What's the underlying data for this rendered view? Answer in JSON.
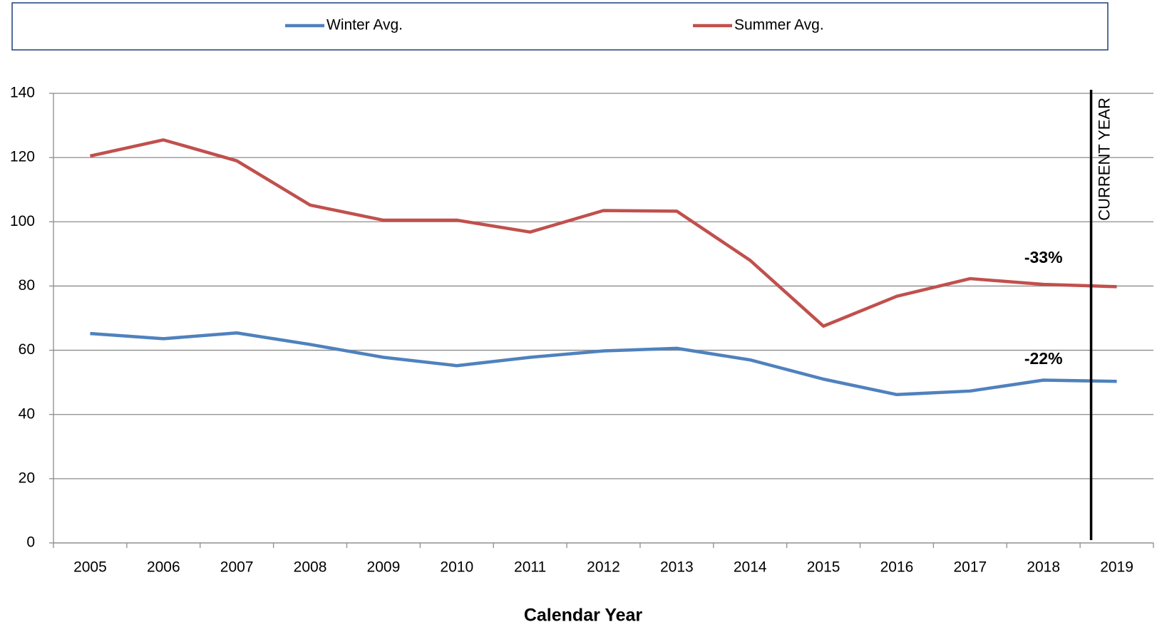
{
  "chart_data": {
    "type": "line",
    "x_label": "Calendar Year",
    "categories": [
      "2005",
      "2006",
      "2007",
      "2008",
      "2009",
      "2010",
      "2011",
      "2012",
      "2013",
      "2014",
      "2015",
      "2016",
      "2017",
      "2018",
      "2019"
    ],
    "series": [
      {
        "name": "Winter Avg.",
        "color": "#4f81bd",
        "values": [
          65.2,
          63.6,
          65.4,
          61.8,
          57.8,
          55.2,
          57.8,
          59.8,
          60.6,
          57.0,
          51.0,
          46.2,
          47.3,
          50.7,
          50.3
        ]
      },
      {
        "name": "Summer Avg.",
        "color": "#c0504d",
        "values": [
          120.5,
          125.5,
          119.0,
          105.2,
          100.5,
          100.5,
          96.8,
          103.5,
          103.3,
          88.0,
          67.5,
          76.8,
          82.3,
          80.5,
          79.8
        ]
      }
    ],
    "ylim": [
      0,
      140
    ],
    "yticks": [
      0,
      20,
      40,
      60,
      80,
      100,
      120,
      140
    ],
    "grid": true,
    "legend": "top",
    "annotations": [
      {
        "text": "-33%",
        "color": "#ff0000"
      },
      {
        "text": "-22%",
        "color": "#4f81bd"
      },
      {
        "text": "CURRENT YEAR",
        "color": "#000000"
      }
    ]
  }
}
